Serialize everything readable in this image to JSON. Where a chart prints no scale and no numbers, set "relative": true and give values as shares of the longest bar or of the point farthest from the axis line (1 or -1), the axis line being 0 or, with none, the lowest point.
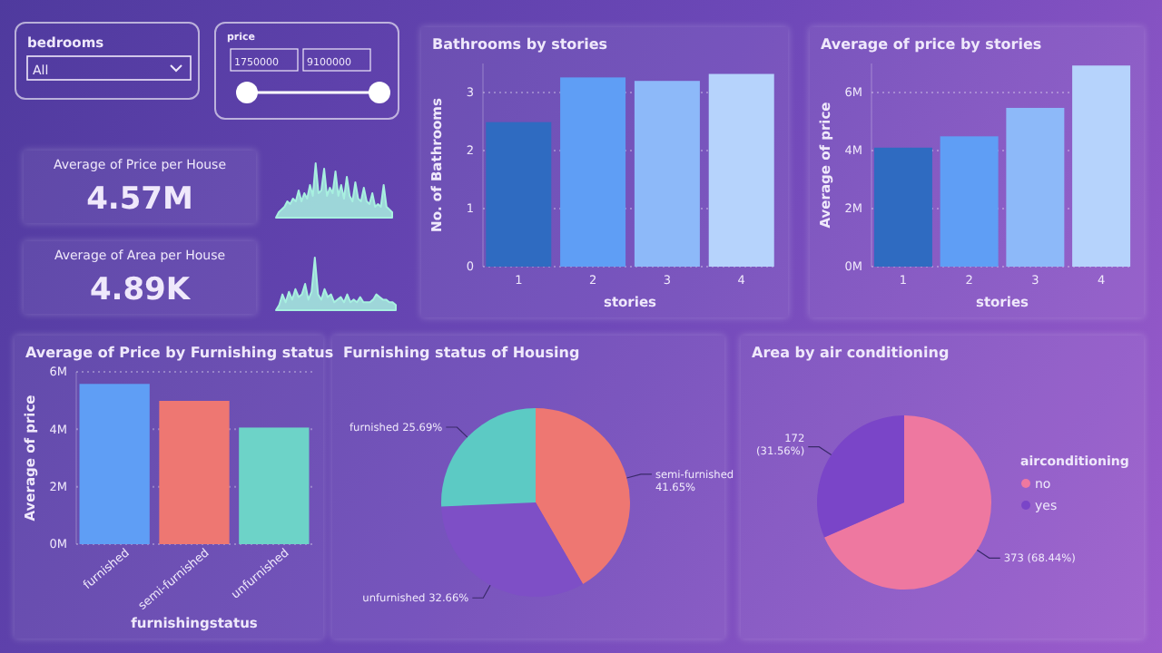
{
  "chart_data": [
    {
      "type": "other",
      "title": "bedrooms",
      "annotations": [
        "All"
      ]
    },
    {
      "type": "other",
      "title": "price",
      "annotations": [
        "1750000",
        "9100000"
      ]
    },
    {
      "type": "bar",
      "title": "Bathrooms by stories",
      "xlabel": "stories",
      "ylabel": "No. of Bathrooms",
      "categories": [
        "1",
        "2",
        "3",
        "4"
      ],
      "values": [
        2.49,
        3.26,
        3.2,
        3.32
      ],
      "colors": [
        "#2f6bc1",
        "#5f9ef5",
        "#8db9f9",
        "#b6d3fc"
      ],
      "ylim": [
        0,
        3.5
      ],
      "yticks": [
        0,
        1,
        2,
        3
      ],
      "grid": "y"
    },
    {
      "type": "bar",
      "title": "Average of price by stories",
      "xlabel": "stories",
      "ylabel": "Average of price",
      "categories": [
        "1",
        "2",
        "3",
        "4"
      ],
      "values": [
        4.1,
        4.49,
        5.47,
        6.93
      ],
      "colors": [
        "#2f6bc1",
        "#5f9ef5",
        "#8db9f9",
        "#b6d3fc"
      ],
      "ylim": [
        0,
        7
      ],
      "yticks": [
        {
          "value": 0,
          "label": "0M"
        },
        {
          "value": 2,
          "label": "2M"
        },
        {
          "value": 4,
          "label": "4M"
        },
        {
          "value": 6,
          "label": "6M"
        }
      ],
      "grid": "y"
    },
    {
      "type": "other",
      "title": "Average of Price per House",
      "annotations": [
        "4.57M"
      ]
    },
    {
      "type": "area",
      "relative": true,
      "color": "#a8f0e0",
      "categories": [
        null,
        null,
        null,
        null,
        null,
        null,
        null,
        null,
        null,
        null,
        null,
        null,
        null,
        null,
        null,
        null,
        null,
        null,
        null,
        null,
        null,
        null,
        null,
        null,
        null,
        null,
        null,
        null,
        null,
        null,
        null,
        null,
        null,
        null,
        null,
        null,
        null,
        null,
        null,
        null,
        null,
        null
      ],
      "values": [
        0,
        0.1,
        0.15,
        0.2,
        0.3,
        0.25,
        0.35,
        0.3,
        0.5,
        0.3,
        0.45,
        0.35,
        0.6,
        0.4,
        1,
        0.45,
        0.5,
        0.9,
        0.4,
        0.55,
        0.45,
        0.85,
        0.4,
        0.6,
        0.35,
        0.75,
        0.4,
        0.3,
        0.65,
        0.35,
        0.3,
        0.55,
        0.3,
        0.25,
        0.45,
        0.2,
        0.25,
        0.2,
        0.6,
        0.2,
        0.15,
        0.1
      ]
    },
    {
      "type": "other",
      "title": "Average of Area per House",
      "annotations": [
        "4.89K"
      ]
    },
    {
      "type": "area",
      "relative": true,
      "color": "#a8f0e0",
      "categories": [
        null,
        null,
        null,
        null,
        null,
        null,
        null,
        null,
        null,
        null,
        null,
        null,
        null,
        null,
        null,
        null,
        null,
        null,
        null,
        null,
        null,
        null,
        null,
        null,
        null,
        null,
        null,
        null,
        null,
        null,
        null,
        null,
        null,
        null,
        null,
        null,
        null,
        null
      ],
      "values": [
        0,
        0.1,
        0.3,
        0.15,
        0.35,
        0.2,
        0.4,
        0.25,
        0.3,
        0.5,
        0.2,
        0.35,
        1,
        0.3,
        0.2,
        0.4,
        0.25,
        0.3,
        0.15,
        0.2,
        0.25,
        0.15,
        0.3,
        0.15,
        0.2,
        0.15,
        0.25,
        0.15,
        0.15,
        0.15,
        0.2,
        0.3,
        0.25,
        0.2,
        0.2,
        0.15,
        0.15,
        0.1
      ]
    },
    {
      "type": "bar",
      "title": "Average of Price by Furnishing status",
      "xlabel": "furnishingstatus",
      "ylabel": "Average of price",
      "categories": [
        "furnished",
        "semi-furnished",
        "unfurnished"
      ],
      "values": [
        5.58,
        4.99,
        4.06
      ],
      "colors": [
        "#5f9ef5",
        "#ee7772",
        "#6dd3c8"
      ],
      "ylim": [
        0,
        6
      ],
      "yticks": [
        {
          "value": 0,
          "label": "0M"
        },
        {
          "value": 2,
          "label": "2M"
        },
        {
          "value": 4,
          "label": "4M"
        },
        {
          "value": 6,
          "label": "6M"
        }
      ],
      "grid": "y"
    },
    {
      "type": "pie",
      "title": "Furnishing status of Housing",
      "categories": [
        "semi-furnished",
        "unfurnished",
        "furnished"
      ],
      "values": [
        41.65,
        32.66,
        25.69
      ],
      "colors": [
        "#ee7772",
        "#7e4fc6",
        "#5ccac4"
      ],
      "value_labels": [
        "41.65%",
        "32.66%",
        "25.69%"
      ]
    },
    {
      "type": "pie",
      "title": "Area by air conditioning",
      "legend_title": "airconditioning",
      "legend": "right",
      "categories": [
        "no",
        "yes"
      ],
      "values": [
        373,
        172
      ],
      "colors": [
        "#ee78a0",
        "#7a45c8"
      ],
      "value_labels": [
        "373 (68.44%)",
        "172 (31.56%)"
      ]
    }
  ]
}
